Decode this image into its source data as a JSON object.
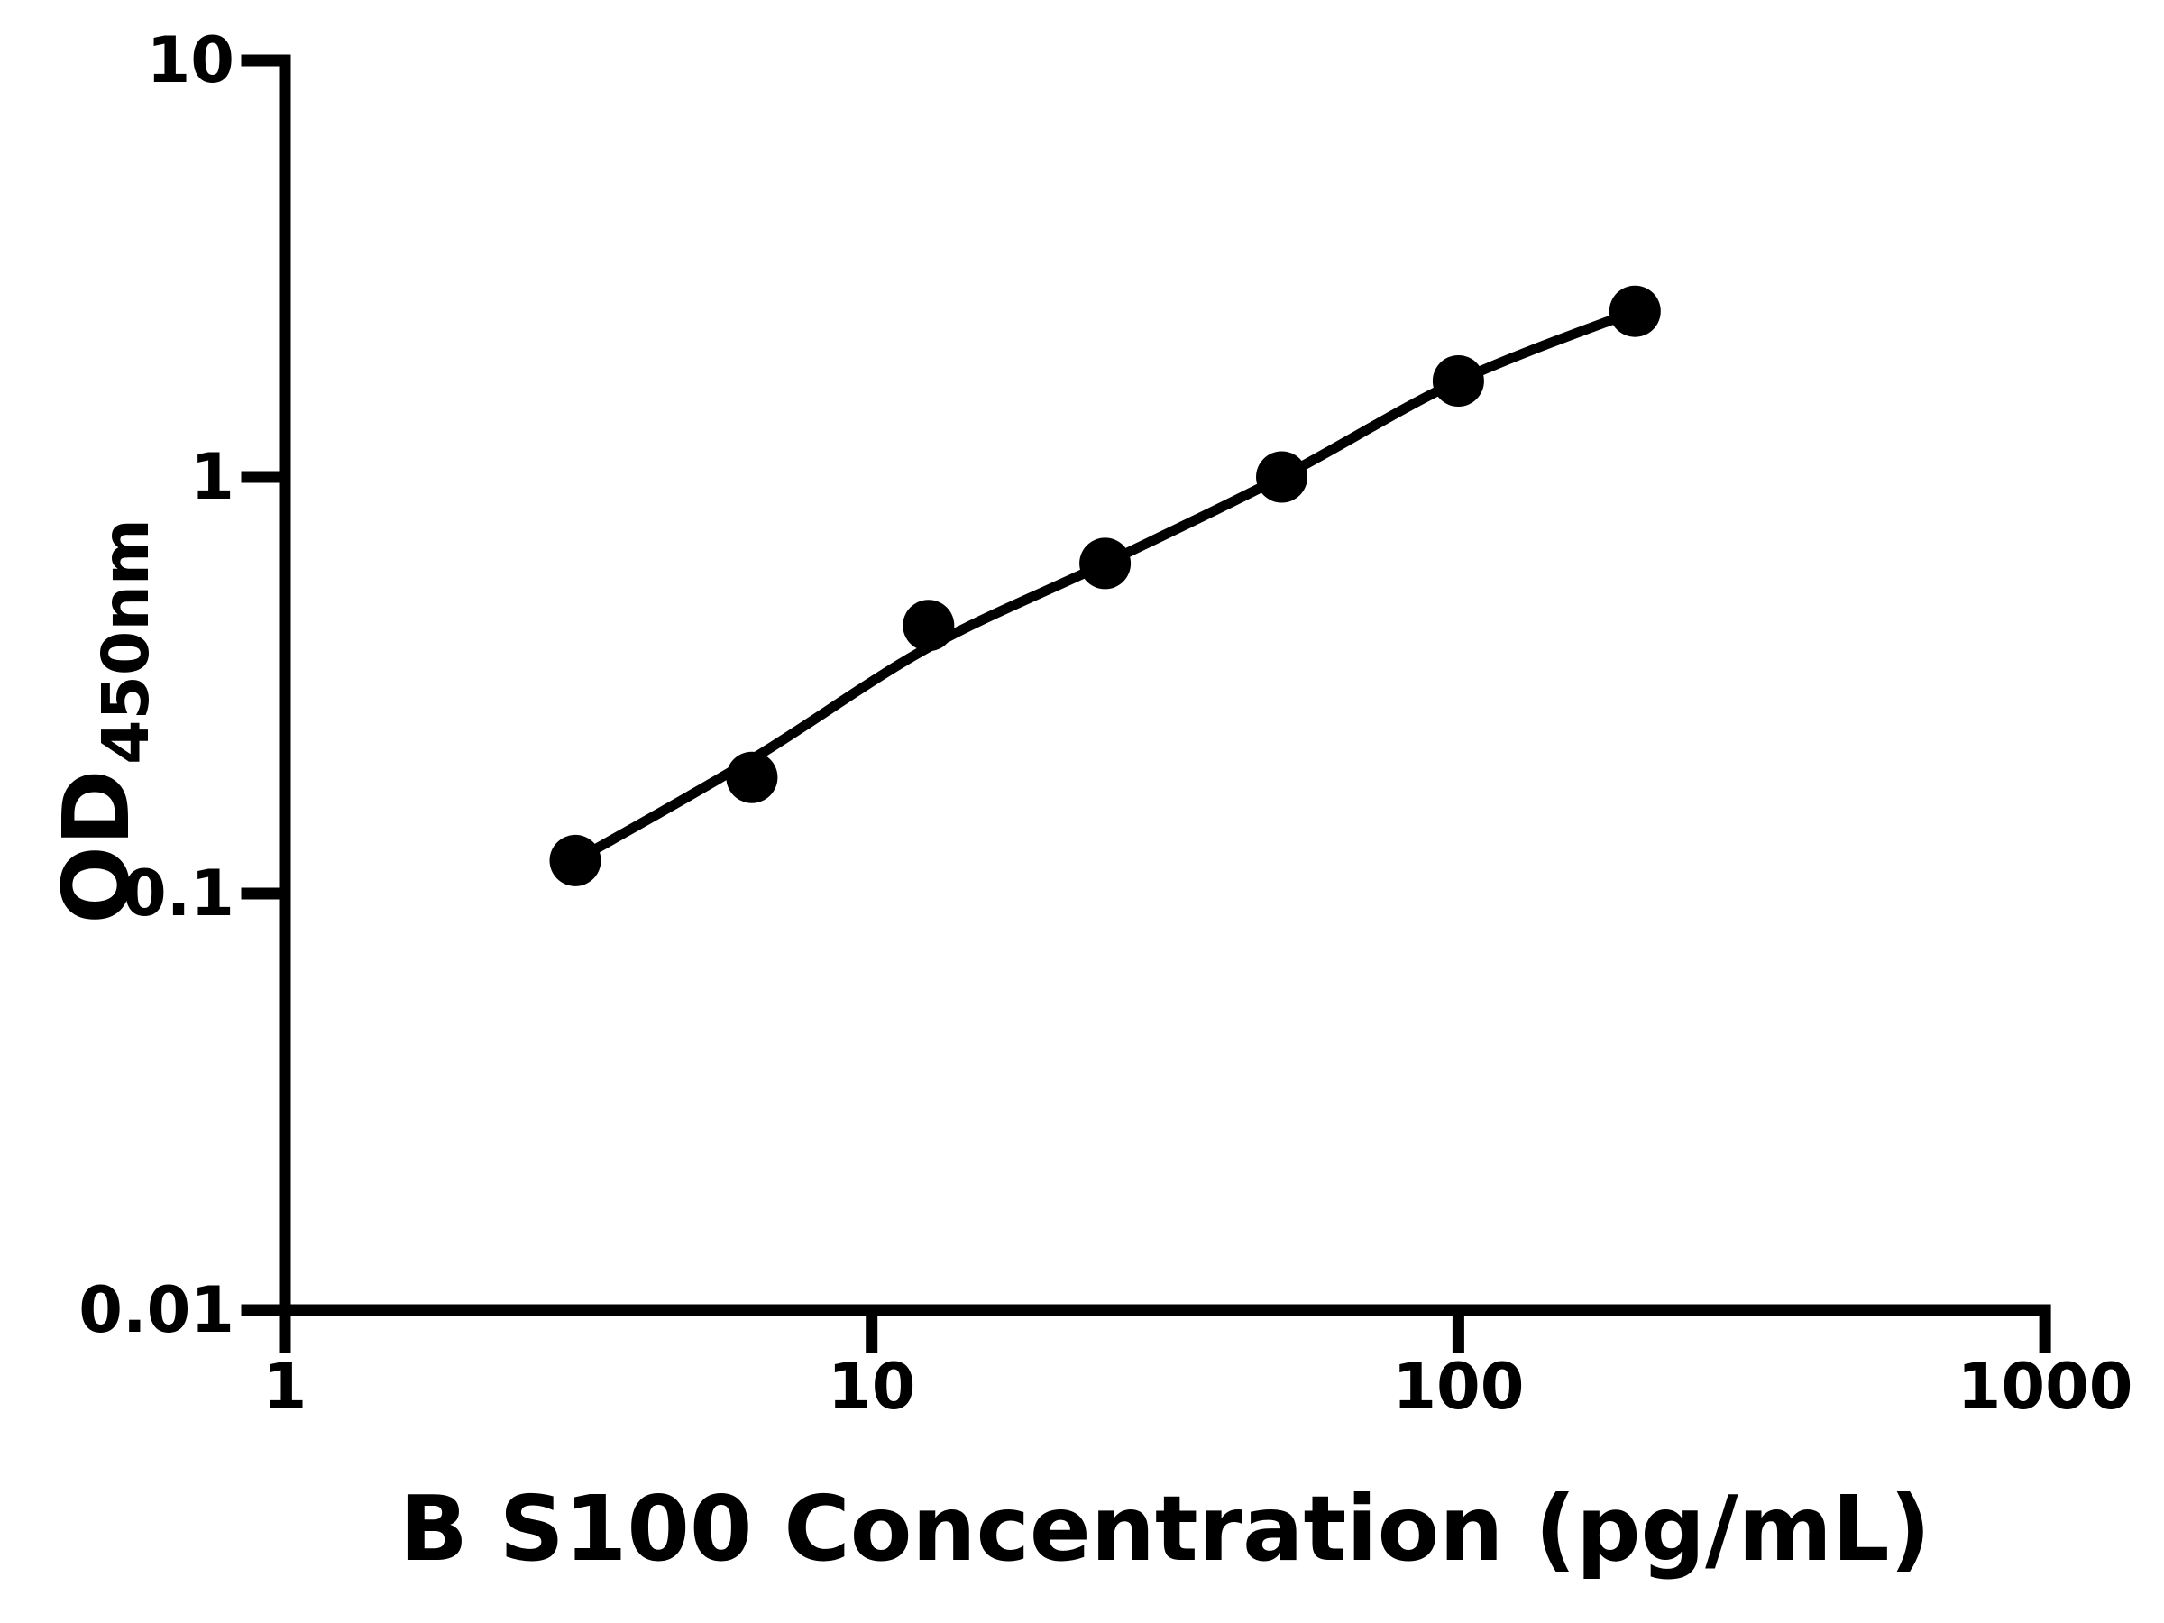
{
  "figure": {
    "background": "#ffffff",
    "axis_color": "#000000",
    "marker_color": "#000000",
    "curve_color": "#000000"
  },
  "chart_data": {
    "type": "scatter",
    "title": "",
    "xlabel": "B S100 Concentration (pg/mL)",
    "ylabel": "OD",
    "ylabel_subscript": "450nm",
    "x_scale": "log",
    "y_scale": "log",
    "xlim": [
      1,
      1000
    ],
    "ylim": [
      0.01,
      10
    ],
    "x_ticks": [
      1,
      10,
      100,
      1000
    ],
    "x_tick_labels": [
      "1",
      "10",
      "100",
      "1000"
    ],
    "y_ticks": [
      10,
      1,
      0.1,
      0.01
    ],
    "y_tick_labels": [
      "10",
      "1",
      "0.1",
      "0.01"
    ],
    "grid": false,
    "legend_position": "none",
    "series": [
      {
        "name": "standard-data-points",
        "type": "scatter",
        "x": [
          3.125,
          6.25,
          12.5,
          25,
          50,
          100,
          200
        ],
        "y": [
          0.12,
          0.19,
          0.44,
          0.62,
          1.0,
          1.7,
          2.5
        ]
      },
      {
        "name": "fit-curve",
        "type": "line",
        "x": [
          3.125,
          6.25,
          12.5,
          25,
          50,
          100,
          200
        ],
        "y": [
          0.12,
          0.21,
          0.39,
          0.62,
          1.0,
          1.7,
          2.5
        ]
      }
    ]
  }
}
